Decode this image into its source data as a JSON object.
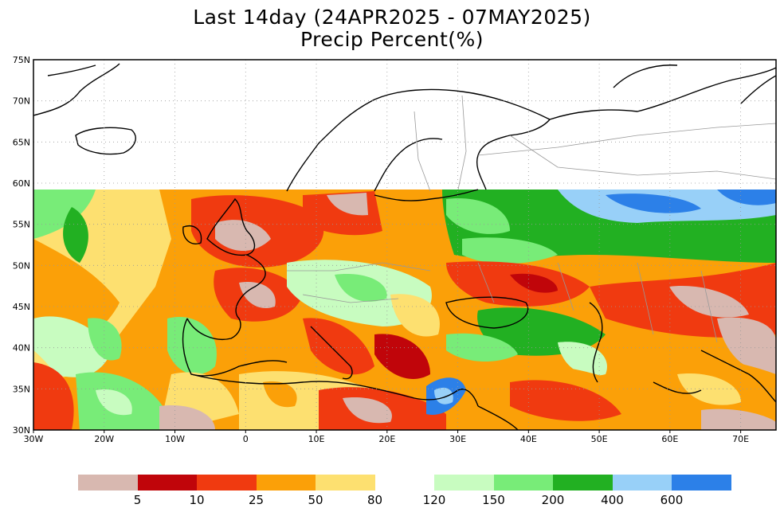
{
  "title": {
    "line1": "Last 14day (24APR2025 - 07MAY2025)",
    "line2": "Precip Percent(%)"
  },
  "map": {
    "lon_range": [
      -30,
      75
    ],
    "lat_range": [
      30,
      75
    ],
    "data_top_lat": 59.5,
    "lat_ticks": [
      "75N",
      "70N",
      "65N",
      "60N",
      "55N",
      "50N",
      "45N",
      "40N",
      "35N",
      "30N"
    ],
    "lon_ticks": [
      "30W",
      "20W",
      "10W",
      "0",
      "10E",
      "20E",
      "30E",
      "40E",
      "50E",
      "60E",
      "70E"
    ],
    "gridlines": "dotted"
  },
  "legend": {
    "dry": {
      "colors": [
        "#d8b8b0",
        "#c0050a",
        "#f03a10",
        "#fba008",
        "#fde070"
      ],
      "labels": [
        "5",
        "10",
        "25",
        "50",
        "80"
      ]
    },
    "wet": {
      "colors": [
        "#c8fcc0",
        "#78ec78",
        "#22b022",
        "#98d0f8",
        "#2c80e8"
      ],
      "labels": [
        "120",
        "150",
        "200",
        "400",
        "600"
      ]
    }
  }
}
